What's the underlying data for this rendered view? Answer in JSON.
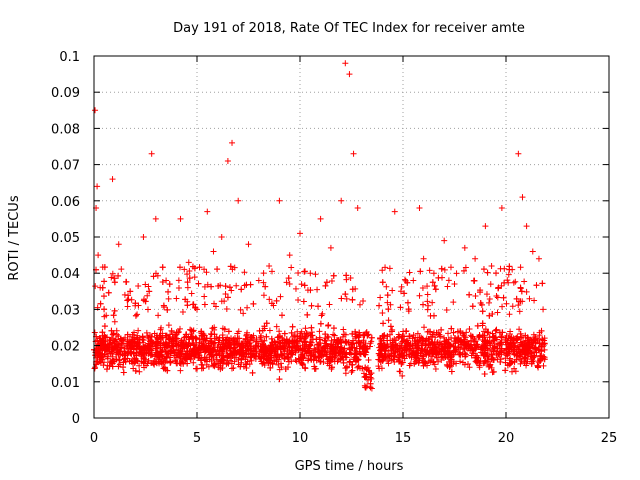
{
  "chart_data": {
    "type": "scatter",
    "title": "Day 191 of 2018, Rate Of TEC Index for receiver amte",
    "xlabel": "GPS time / hours",
    "ylabel": "ROTI / TECUs",
    "xlim": [
      0,
      25
    ],
    "ylim": [
      0,
      0.1
    ],
    "xticks": [
      0,
      5,
      10,
      15,
      20,
      25
    ],
    "yticks": [
      0,
      0.01,
      0.02,
      0.03,
      0.04,
      0.05,
      0.06,
      0.07,
      0.08,
      0.09,
      0.1
    ],
    "grid": true,
    "marker": "+",
    "color": "#ff0000",
    "series": [
      {
        "name": "ROTI",
        "x": [
          0.05,
          0.1,
          0.15,
          0.2,
          0.3,
          0.5,
          0.9,
          1.2,
          1.5,
          2.0,
          2.4,
          2.8,
          3.0,
          3.5,
          4.0,
          4.2,
          4.6,
          5.0,
          5.5,
          5.8,
          6.2,
          6.5,
          6.7,
          7.0,
          7.5,
          8.0,
          8.5,
          9.0,
          9.5,
          10.0,
          10.5,
          11.0,
          11.5,
          12.0,
          12.2,
          12.4,
          12.6,
          12.8,
          13.2,
          13.4,
          14.0,
          14.3,
          14.6,
          14.9,
          15.5,
          15.8,
          16.0,
          16.5,
          17.0,
          17.5,
          18.0,
          18.5,
          19.0,
          19.3,
          19.8,
          20.3,
          20.6,
          20.8,
          21.0,
          21.3,
          21.6,
          21.8
        ],
        "y": [
          0.085,
          0.058,
          0.064,
          0.045,
          0.036,
          0.028,
          0.066,
          0.048,
          0.034,
          0.031,
          0.05,
          0.073,
          0.055,
          0.038,
          0.033,
          0.055,
          0.043,
          0.03,
          0.057,
          0.046,
          0.05,
          0.071,
          0.076,
          0.06,
          0.048,
          0.038,
          0.042,
          0.06,
          0.045,
          0.051,
          0.04,
          0.055,
          0.047,
          0.06,
          0.098,
          0.095,
          0.073,
          0.058,
          0.019,
          0.012,
          0.029,
          0.027,
          0.057,
          0.035,
          0.038,
          0.058,
          0.044,
          0.04,
          0.049,
          0.037,
          0.047,
          0.044,
          0.053,
          0.042,
          0.058,
          0.041,
          0.073,
          0.061,
          0.053,
          0.046,
          0.044,
          0.03
        ]
      }
    ],
    "distribution_note": "Dense cloud of points mostly between 0.01 and 0.03 across 0-13.5 h and 13.8-21.9 h with a gap near 13.5-13.8 h."
  }
}
